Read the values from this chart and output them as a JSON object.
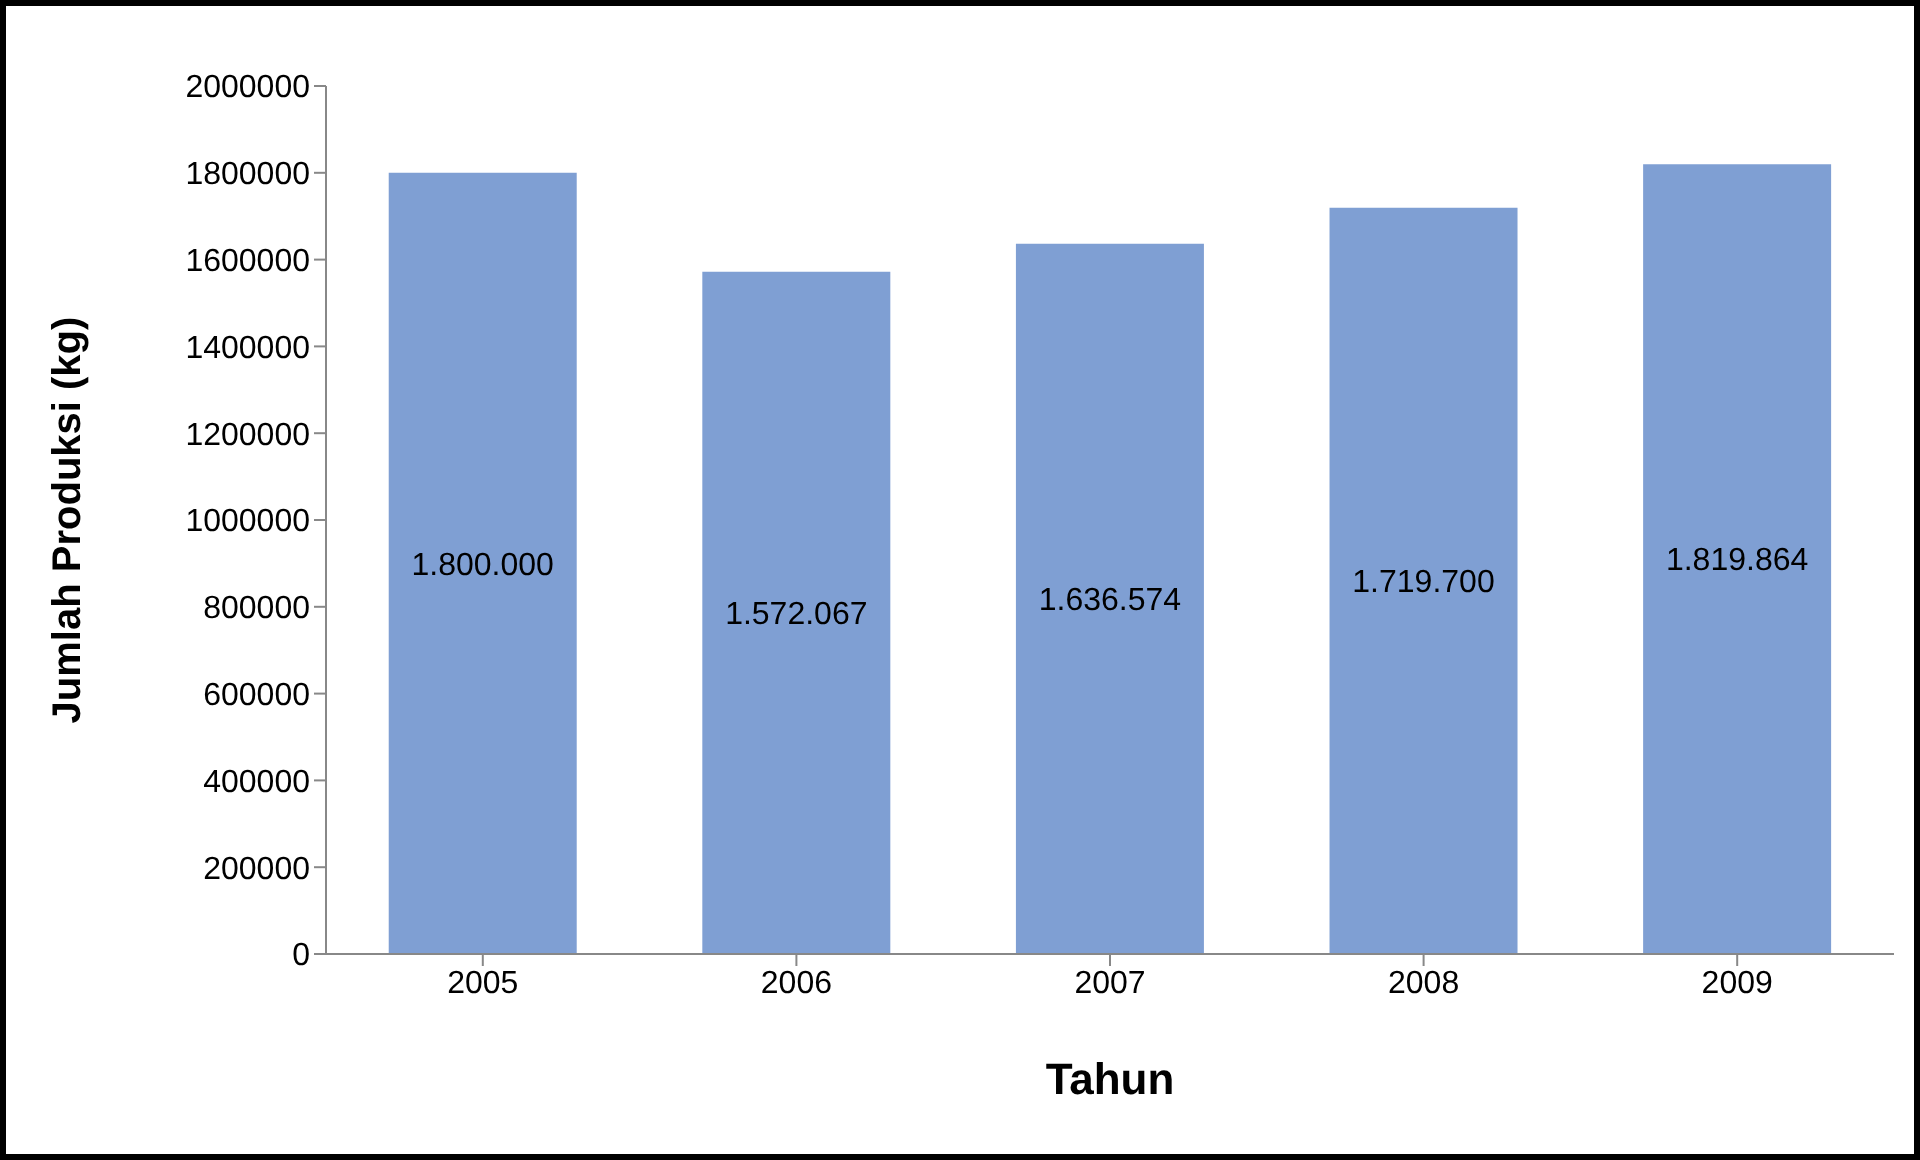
{
  "chart_data": {
    "type": "bar",
    "xlabel": "Tahun",
    "ylabel": "Jumlah Produksi (kg)",
    "categories": [
      "2005",
      "2006",
      "2007",
      "2008",
      "2009"
    ],
    "values": [
      1800000,
      1572067,
      1636574,
      1719700,
      1819864
    ],
    "value_labels": [
      "1.800.000",
      "1.572.067",
      "1.636.574",
      "1.719.700",
      "1.819.864"
    ],
    "color": "#7f9fd3",
    "ylim": [
      0,
      2000000
    ],
    "yticks": [
      0,
      200000,
      400000,
      600000,
      800000,
      1000000,
      1200000,
      1400000,
      1600000,
      1800000,
      2000000
    ],
    "grid": false,
    "legend": false
  }
}
